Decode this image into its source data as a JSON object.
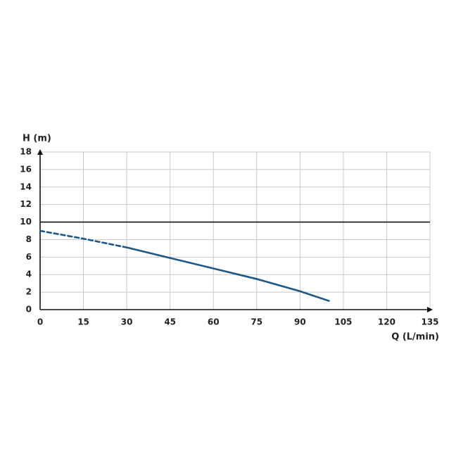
{
  "chart_data": {
    "type": "line",
    "x_label": "Q (L/min)",
    "y_label": "H (m)",
    "x": [
      0,
      15,
      30,
      45,
      60,
      75,
      90,
      100
    ],
    "series": [
      {
        "color": "#1d5887",
        "values": [
          9,
          8.1,
          7.1,
          5.9,
          4.7,
          3.5,
          2.1,
          1.0
        ]
      }
    ],
    "dashed_below_x": 30,
    "reference_line": {
      "value": 10,
      "color": "#111111"
    },
    "xlim": [
      0,
      135
    ],
    "xticks": [
      0,
      15,
      30,
      45,
      60,
      75,
      90,
      105,
      120,
      135
    ],
    "ylim": [
      0,
      18
    ],
    "yticks": [
      0,
      2,
      4,
      6,
      8,
      10,
      12,
      14,
      16,
      18
    ],
    "grid": true
  }
}
